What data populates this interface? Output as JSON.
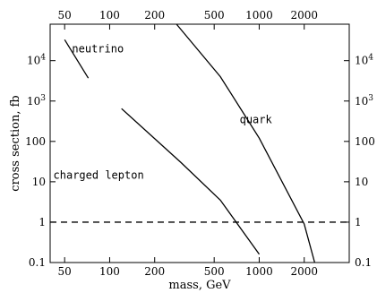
{
  "chart_data": {
    "type": "line",
    "xlabel": "mass, GeV",
    "ylabel": "cross section, fb",
    "x_scale": "log",
    "y_scale": "log",
    "xlim": [
      40,
      4000
    ],
    "ylim": [
      0.1,
      80000
    ],
    "x_ticks": [
      {
        "value": 50,
        "label": "50"
      },
      {
        "value": 100,
        "label": "100"
      },
      {
        "value": 200,
        "label": "200"
      },
      {
        "value": 500,
        "label": "500"
      },
      {
        "value": 1000,
        "label": "1000"
      },
      {
        "value": 2000,
        "label": "2000"
      }
    ],
    "y_ticks": [
      {
        "value": 0.1,
        "label": "0.1"
      },
      {
        "value": 1,
        "label": "1"
      },
      {
        "value": 10,
        "label": "10"
      },
      {
        "value": 100,
        "label": "100"
      },
      {
        "value": 1000,
        "label": "10",
        "sup": "3"
      },
      {
        "value": 10000,
        "label": "10",
        "sup": "4"
      }
    ],
    "series": [
      {
        "name": "neutrino",
        "x": [
          50,
          72
        ],
        "y": [
          33000,
          3700
        ]
      },
      {
        "name": "quark",
        "x": [
          280,
          550,
          1000,
          2000,
          2350
        ],
        "y": [
          80000,
          4000,
          120,
          0.9,
          0.1
        ]
      },
      {
        "name": "charged lepton",
        "x": [
          120,
          300,
          550,
          1000
        ],
        "y": [
          650,
          30,
          3.5,
          0.16
        ]
      }
    ],
    "reference_line": {
      "y": 1,
      "style": "dashed"
    },
    "annotations": [
      {
        "text": "neutrino",
        "x": 56,
        "y": 16000
      },
      {
        "text": "quark",
        "x": 740,
        "y": 280
      },
      {
        "text": "charged lepton",
        "x": 42,
        "y": 12
      }
    ]
  }
}
